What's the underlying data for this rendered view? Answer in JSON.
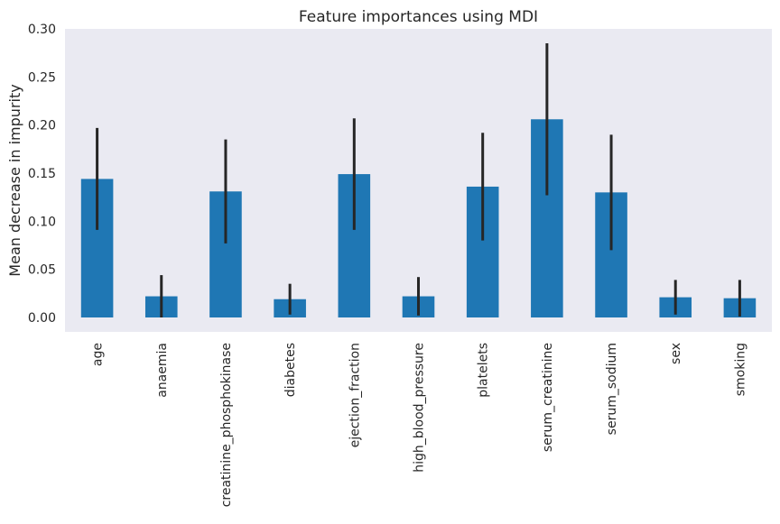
{
  "chart_data": {
    "type": "bar",
    "title": "Feature importances using MDI",
    "xlabel": "",
    "ylabel": "Mean decrease in impurity",
    "categories": [
      "age",
      "anaemia",
      "creatinine_phosphokinase",
      "diabetes",
      "ejection_fraction",
      "high_blood_pressure",
      "platelets",
      "serum_creatinine",
      "serum_sodium",
      "sex",
      "smoking"
    ],
    "values": [
      0.144,
      0.022,
      0.131,
      0.019,
      0.149,
      0.022,
      0.136,
      0.206,
      0.13,
      0.021,
      0.02
    ],
    "errors": [
      0.053,
      0.022,
      0.054,
      0.016,
      0.058,
      0.02,
      0.056,
      0.079,
      0.06,
      0.018,
      0.019
    ],
    "ylim": [
      -0.015,
      0.3
    ],
    "yticks": [
      0.0,
      0.05,
      0.1,
      0.15,
      0.2,
      0.25,
      0.3
    ],
    "ytick_labels": [
      "0.00",
      "0.05",
      "0.10",
      "0.15",
      "0.20",
      "0.25",
      "0.30"
    ],
    "grid": false,
    "colors": {
      "bar": "#1f77b4",
      "errorbar": "#262626",
      "plot_background": "#eaeaf2"
    }
  }
}
